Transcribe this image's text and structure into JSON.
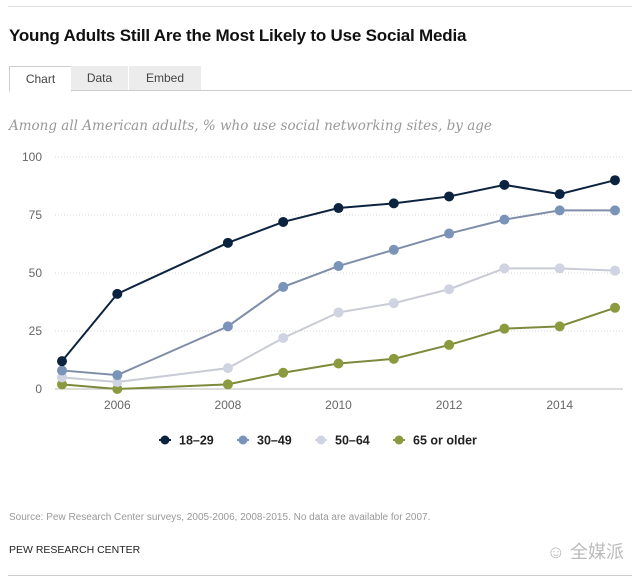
{
  "header": {
    "title": "Young Adults Still Are the Most Likely to Use Social Media",
    "tabs": [
      {
        "label": "Chart",
        "active": true
      },
      {
        "label": "Data",
        "active": false
      },
      {
        "label": "Embed",
        "active": false
      }
    ]
  },
  "footer": {
    "source": "Source: Pew Research Center surveys, 2005-2006, 2008-2015. No data are available for 2007.",
    "brand": "PEW RESEARCH CENTER",
    "watermark": "全媒派"
  },
  "chart_data": {
    "type": "line",
    "title": "Young Adults Still Are the Most Likely to Use Social Media",
    "subtitle": "Among all American adults, % who use social networking sites, by age",
    "xlabel": "",
    "ylabel": "",
    "x": [
      2005,
      2006,
      2008,
      2009,
      2010,
      2011,
      2012,
      2013,
      2014,
      2015
    ],
    "xlim": [
      2005,
      2015
    ],
    "ylim": [
      0,
      100
    ],
    "yticks": [
      0,
      25,
      50,
      75,
      100
    ],
    "xticks": [
      2006,
      2008,
      2010,
      2012,
      2014
    ],
    "grid": true,
    "legend_position": "bottom-center",
    "series": [
      {
        "name": "18-29",
        "color": "#0c2340",
        "values": [
          12,
          41,
          63,
          72,
          78,
          80,
          83,
          88,
          84,
          90
        ]
      },
      {
        "name": "30-49",
        "color": "#7a93b8",
        "line_color": "#7f8ea8",
        "values": [
          8,
          6,
          27,
          44,
          53,
          60,
          67,
          73,
          77,
          77
        ]
      },
      {
        "name": "50-64",
        "color": "#cfd3e2",
        "line_color": "#c9cbd6",
        "values": [
          5,
          3,
          9,
          22,
          33,
          37,
          43,
          52,
          52,
          51
        ]
      },
      {
        "name": "65 or older",
        "color": "#8b9a3f",
        "line_color": "#7d8a3c",
        "values": [
          2,
          0,
          2,
          7,
          11,
          13,
          19,
          26,
          27,
          35
        ]
      }
    ]
  }
}
